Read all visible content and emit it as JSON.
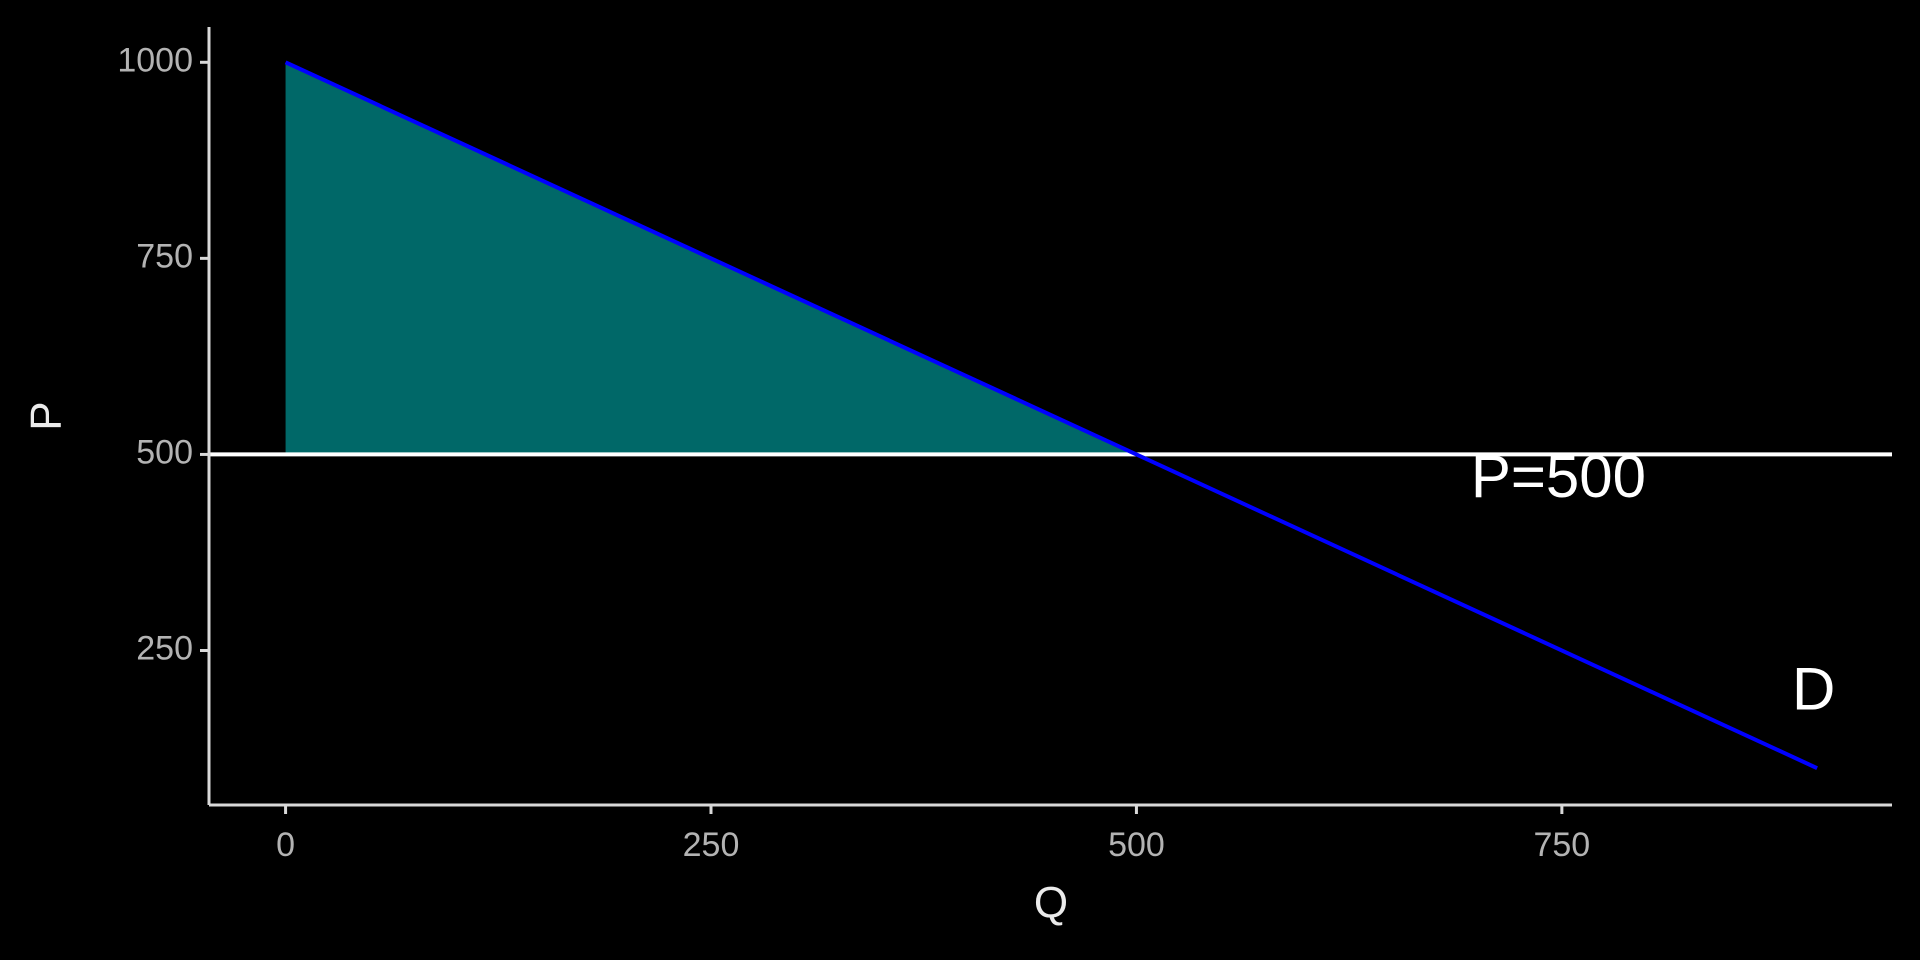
{
  "chart_data": {
    "type": "line",
    "xlabel": "Q",
    "ylabel": "P",
    "xlim": [
      -45,
      944
    ],
    "ylim": [
      53,
      1045
    ],
    "xticks": [
      0,
      250,
      500,
      750
    ],
    "yticks": [
      250,
      500,
      750,
      1000
    ],
    "series": [
      {
        "color": "#0000ff",
        "x": [
          0,
          900
        ],
        "y": [
          1000,
          100
        ]
      }
    ],
    "hline": {
      "y": 500,
      "color": "#ffffff"
    },
    "shaded": {
      "color": "#006868",
      "x": [
        0,
        500,
        0
      ],
      "y": [
        1000,
        500,
        500
      ]
    },
    "annotations": [
      {
        "text": "P=500",
        "x": 748,
        "y": 466
      },
      {
        "text": "D",
        "x": 898,
        "y": 195
      }
    ]
  }
}
